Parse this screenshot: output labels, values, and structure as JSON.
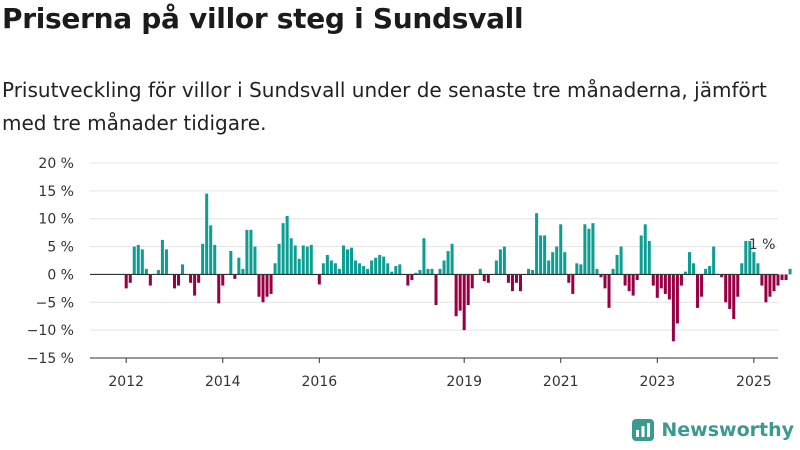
{
  "title": "Priserna på villor steg i Sundsvall",
  "subtitle": "Prisutveckling för villor i Sundsvall under de senaste tre månaderna, jämfört med tre månader tidigare.",
  "brand": {
    "name": "Newsworthy",
    "icon": "newsworthy-logo-icon"
  },
  "colors": {
    "positive": "#0d9e93",
    "negative": "#990044",
    "grid": "#e4e4e4",
    "axis": "#333333"
  },
  "chart_data": {
    "type": "bar",
    "ylim": [
      -15,
      20
    ],
    "y_ticks": [
      -15,
      -10,
      -5,
      0,
      5,
      10,
      15,
      20
    ],
    "y_tick_labels": [
      "−15 %",
      "−10 %",
      "−5 %",
      "0 %",
      "5 %",
      "10 %",
      "15 %",
      "20 %"
    ],
    "x_range": [
      2011.25,
      2025.5
    ],
    "x_ticks": [
      2012,
      2014,
      2016,
      2019,
      2021,
      2023,
      2025
    ],
    "x_tick_labels": [
      "2012",
      "2014",
      "2016",
      "2019",
      "2021",
      "2023",
      "2025"
    ],
    "grid": true,
    "annotation": {
      "text": "1 %",
      "x": 2025.17,
      "y": 1
    },
    "start": "2012-01",
    "values": [
      -2.5,
      -1.5,
      5,
      5.3,
      4.5,
      1,
      -2,
      0,
      0.8,
      6.2,
      4.5,
      0,
      -2.5,
      -2,
      1.8,
      0,
      -1.5,
      -3.8,
      -1.5,
      5.5,
      14.5,
      8.8,
      5.3,
      -5.2,
      -2,
      0,
      4.2,
      -0.8,
      3,
      1,
      8,
      8,
      5,
      -4,
      -5,
      -4,
      -3.5,
      2,
      5.5,
      9.2,
      10.5,
      6.5,
      5.2,
      2.8,
      5.2,
      5,
      5.3,
      0,
      -1.8,
      2,
      3.5,
      2.5,
      2,
      1,
      5.2,
      4.5,
      4.8,
      2.5,
      2,
      1.5,
      1,
      2.5,
      3,
      3.5,
      3.2,
      2,
      0.5,
      1.5,
      1.8,
      0,
      -2,
      -1,
      0.3,
      0.8,
      6.5,
      1,
      1,
      -5.5,
      1,
      2.5,
      4.2,
      5.5,
      -7.5,
      -6.5,
      -10,
      -5.5,
      -2.5,
      0,
      1,
      -1.2,
      -1.5,
      0,
      2.5,
      4.5,
      5,
      -1.5,
      -3,
      -1.5,
      -3,
      0,
      1,
      0.8,
      11,
      7,
      7,
      2.5,
      4,
      5,
      9,
      4,
      -1.5,
      -3.5,
      2,
      1.8,
      9,
      8.2,
      9.2,
      1,
      -0.5,
      -2.5,
      -6,
      1,
      3.5,
      5,
      -2,
      -3,
      -3.8,
      -1,
      7,
      9,
      6,
      -2,
      -4.2,
      -2.5,
      -3.5,
      -4.5,
      -12,
      -8.8,
      -2,
      0.5,
      4,
      2,
      -6,
      -4,
      1,
      1.5,
      5,
      0,
      -0.5,
      -5,
      -6.2,
      -8,
      -4,
      2,
      6,
      6,
      4,
      2,
      -2,
      -5,
      -4,
      -3,
      -2,
      -1,
      -1,
      1
    ]
  }
}
